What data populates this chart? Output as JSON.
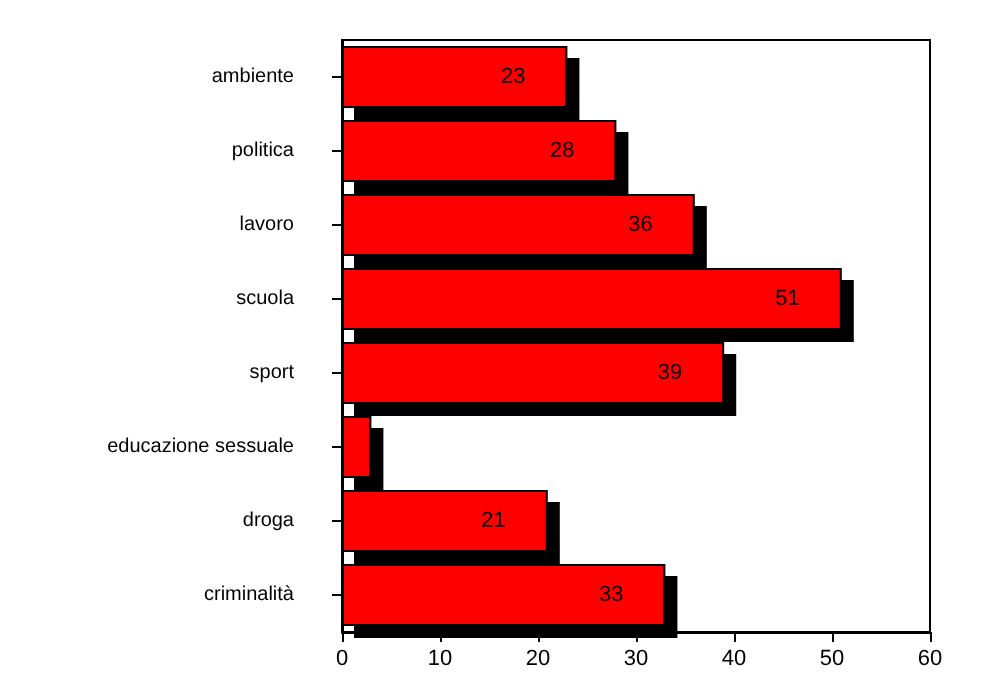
{
  "chart_data": {
    "type": "bar",
    "orientation": "horizontal",
    "categories": [
      "ambiente",
      "politica",
      "lavoro",
      "scuola",
      "sport",
      "educazione sessuale",
      "droga",
      "criminalità"
    ],
    "values": [
      23,
      28,
      36,
      51,
      39,
      3,
      21,
      33
    ],
    "value_labels": [
      "23",
      "28",
      "36",
      "51",
      "39",
      null,
      "21",
      "33"
    ],
    "color": "#ff0000",
    "xlim": [
      0,
      60
    ],
    "xticks": [
      0,
      10,
      20,
      30,
      40,
      50,
      60
    ],
    "grid": false
  }
}
